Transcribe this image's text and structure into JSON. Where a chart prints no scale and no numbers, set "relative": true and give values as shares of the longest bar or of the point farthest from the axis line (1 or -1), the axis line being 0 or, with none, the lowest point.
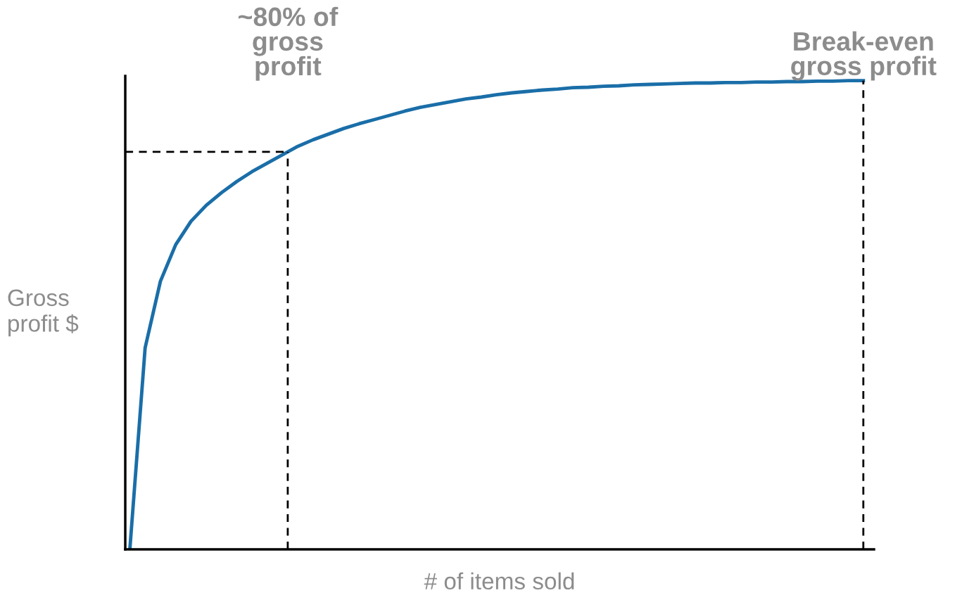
{
  "chart_data": {
    "type": "line",
    "relative": true,
    "xlabel": "# of items sold",
    "ylabel": "Gross profit $",
    "categories": [
      null,
      null,
      null,
      null,
      null,
      null,
      null,
      null,
      null,
      null,
      null,
      null,
      null,
      null,
      null,
      null,
      null,
      null,
      null,
      null,
      null,
      null,
      null,
      null,
      null,
      null,
      null,
      null,
      null,
      null,
      null,
      null,
      null,
      null,
      null,
      null,
      null,
      null,
      null,
      null,
      null,
      null,
      null,
      null,
      null,
      null,
      null,
      null,
      null
    ],
    "series": [
      {
        "color": "#1a6ea8",
        "values": [
          0,
          0.43,
          0.572,
          0.65,
          0.7,
          0.734,
          0.761,
          0.785,
          0.806,
          0.824,
          0.842,
          0.86,
          0.874,
          0.886,
          0.898,
          0.908,
          0.917,
          0.926,
          0.935,
          0.943,
          0.949,
          0.955,
          0.961,
          0.965,
          0.97,
          0.974,
          0.977,
          0.98,
          0.982,
          0.985,
          0.986,
          0.988,
          0.989,
          0.991,
          0.992,
          0.993,
          0.994,
          0.995,
          0.995,
          0.996,
          0.996,
          0.997,
          0.997,
          0.998,
          0.998,
          0.999,
          0.999,
          1,
          1
        ]
      }
    ],
    "ref_lines": [
      {
        "axis": "y",
        "value": 0.848,
        "color": "#000000",
        "line_style": "dashed"
      }
    ],
    "annotations": [
      "~80% of\ngross\nprofit",
      "Break-even\ngross profit"
    ],
    "grid": false,
    "legend": false,
    "marker": "none",
    "line_style": "solid"
  }
}
